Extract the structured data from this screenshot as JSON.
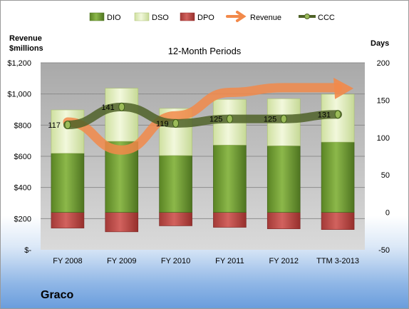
{
  "chart_data": {
    "type": "bar",
    "title": "12-Month Periods",
    "left_axis_label": [
      "Revenue",
      "$millions"
    ],
    "right_axis_label": "Days",
    "left_ticks": [
      "$-",
      "$200",
      "$400",
      "$600",
      "$800",
      "$1,000",
      "$1,200"
    ],
    "right_ticks": [
      "-50",
      "0",
      "50",
      "100",
      "150",
      "200"
    ],
    "ylim_left": [
      0,
      1200
    ],
    "ylim_right": [
      -50,
      200
    ],
    "categories": [
      "FY 2008",
      "FY 2009",
      "FY 2010",
      "FY 2011",
      "FY 2012",
      "TTM 3-2013"
    ],
    "series": [
      {
        "name": "DIO",
        "axis": "right",
        "values": [
          79,
          95,
          76,
          90,
          89,
          94
        ],
        "color": "#6d9a2e"
      },
      {
        "name": "DSO",
        "axis": "right",
        "values": [
          58,
          71,
          63,
          61,
          63,
          64
        ],
        "color": "#dbe8b4"
      },
      {
        "name": "DPO",
        "axis": "right",
        "values": [
          -21,
          -26,
          -18,
          -20,
          -22,
          -23
        ],
        "color": "#c0504d"
      },
      {
        "name": "Revenue",
        "axis": "left",
        "values": [
          820,
          640,
          860,
          1010,
          1040,
          1040
        ],
        "color": "#f2894a"
      },
      {
        "name": "CCC",
        "axis": "right",
        "values": [
          117,
          141,
          119,
          125,
          125,
          131
        ],
        "color": "#4f6228"
      }
    ],
    "ccc_labels": [
      "117",
      "141",
      "119",
      "125",
      "125",
      "131"
    ],
    "legend_position": "top",
    "grid": true
  },
  "company": "Graco"
}
